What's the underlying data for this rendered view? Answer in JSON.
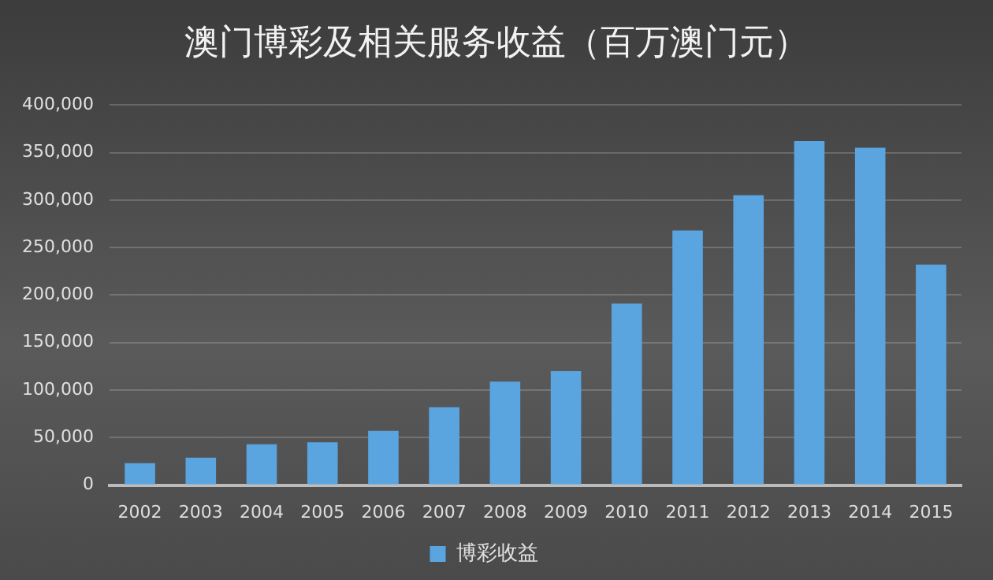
{
  "chart_data": {
    "type": "bar",
    "title": "澳门博彩及相关服务收益（百万澳门元）",
    "categories": [
      "2002",
      "2003",
      "2004",
      "2005",
      "2006",
      "2007",
      "2008",
      "2009",
      "2010",
      "2011",
      "2012",
      "2013",
      "2014",
      "2015"
    ],
    "series": [
      {
        "name": "博彩收益",
        "color": "#5aa5e0",
        "values": [
          23000,
          29000,
          43000,
          45000,
          57000,
          82000,
          109000,
          120000,
          191000,
          268000,
          305000,
          362000,
          355000,
          232000
        ]
      }
    ],
    "ylim": [
      0,
      400000
    ],
    "yticks": [
      0,
      {
        "value": 50000,
        "label": "50,000"
      },
      {
        "value": 100000,
        "label": "100,000"
      },
      {
        "value": 150000,
        "label": "150,000"
      },
      {
        "value": 200000,
        "label": "200,000"
      },
      {
        "value": 250000,
        "label": "250,000"
      },
      {
        "value": 300000,
        "label": "300,000"
      },
      {
        "value": 350000,
        "label": "350,000"
      },
      {
        "value": 400000,
        "label": "400,000"
      }
    ],
    "grid": "y",
    "legend": "bottom"
  }
}
